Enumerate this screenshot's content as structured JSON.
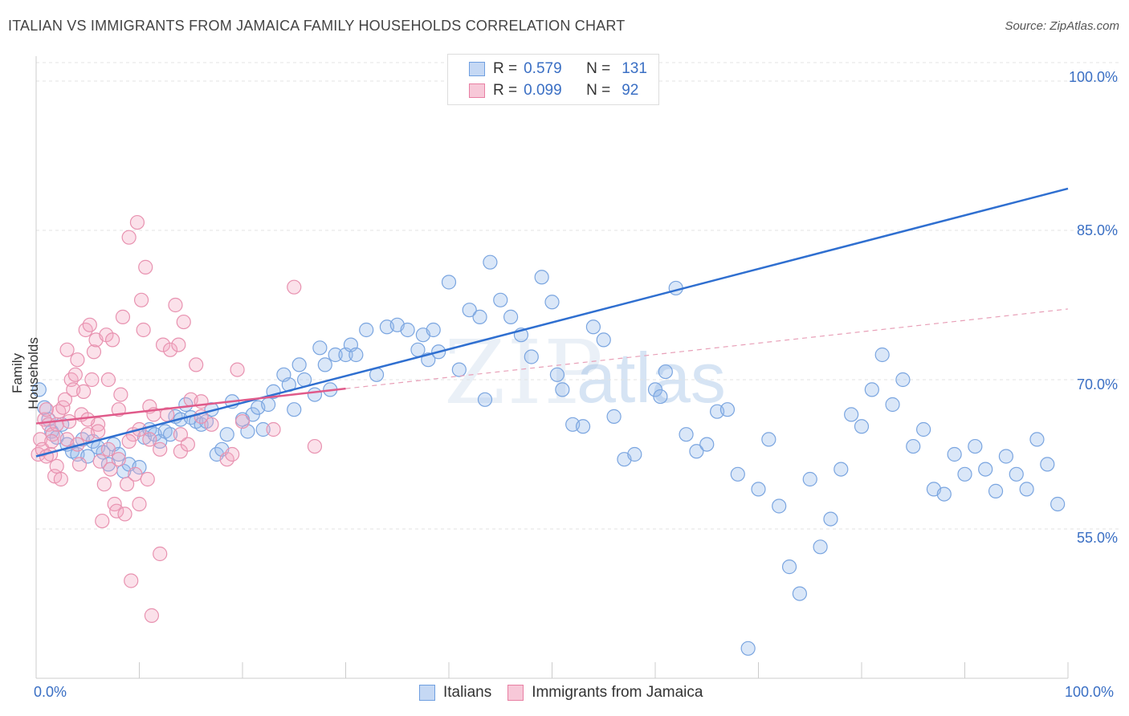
{
  "header": {
    "title": "ITALIAN VS IMMIGRANTS FROM JAMAICA FAMILY HOUSEHOLDS CORRELATION CHART",
    "source": "Source: ZipAtlas.com"
  },
  "watermark": {
    "part1": "ZIP",
    "part2": "atlas"
  },
  "legend_top": {
    "rows": [
      {
        "r_label": "R =",
        "r_value": "0.579",
        "n_label": "N =",
        "n_value": "131"
      },
      {
        "r_label": "R =",
        "r_value": "0.099",
        "n_label": "N =",
        "n_value": "92"
      }
    ]
  },
  "legend_bottom": {
    "items": [
      "Italians",
      "Immigrants from Jamaica"
    ]
  },
  "colors": {
    "blue": "#6f9fe0",
    "blue_fill": "#c5d8f4",
    "pink": "#e87fa3",
    "pink_fill": "#f7c8d8",
    "blue_line": "#2f6fd0",
    "pink_line": "#e05a8a",
    "accent_text": "#3a6fc4"
  },
  "chart_data": {
    "type": "scatter",
    "title": "ITALIAN VS IMMIGRANTS FROM JAMAICA FAMILY HOUSEHOLDS CORRELATION CHART",
    "xlabel": "",
    "ylabel": "Family Households",
    "xlim": [
      0,
      100
    ],
    "ylim": [
      40,
      102.5
    ],
    "x_tick_labels": [
      "0.0%",
      "100.0%"
    ],
    "y_ticks": [
      55,
      70,
      85,
      100
    ],
    "y_tick_labels": [
      "55.0%",
      "70.0%",
      "85.0%",
      "100.0%"
    ],
    "grid": true,
    "legend_position": "top-center",
    "series": [
      {
        "name": "Italians",
        "color": "#6f9fe0",
        "R": 0.579,
        "N": 131,
        "trend": {
          "x": [
            0,
            100
          ],
          "y": [
            62.3,
            89.2
          ]
        },
        "points": [
          [
            0.3,
            69.0
          ],
          [
            0.8,
            67.2
          ],
          [
            1.2,
            66.0
          ],
          [
            1.5,
            64.8
          ],
          [
            2.0,
            64.2
          ],
          [
            2.5,
            65.5
          ],
          [
            3.0,
            63.5
          ],
          [
            3.5,
            62.8
          ],
          [
            4.0,
            62.5
          ],
          [
            4.5,
            64.0
          ],
          [
            5.0,
            62.3
          ],
          [
            5.5,
            63.8
          ],
          [
            6.0,
            63.2
          ],
          [
            6.5,
            62.7
          ],
          [
            7.0,
            61.5
          ],
          [
            7.5,
            63.5
          ],
          [
            8.0,
            62.5
          ],
          [
            8.5,
            60.8
          ],
          [
            9.0,
            61.5
          ],
          [
            10.0,
            61.2
          ],
          [
            10.5,
            64.2
          ],
          [
            11.0,
            65.0
          ],
          [
            11.5,
            64.5
          ],
          [
            12.0,
            63.8
          ],
          [
            12.5,
            64.8
          ],
          [
            13.0,
            64.5
          ],
          [
            13.5,
            66.3
          ],
          [
            14.0,
            66.0
          ],
          [
            14.5,
            67.5
          ],
          [
            15.0,
            66.2
          ],
          [
            15.5,
            65.8
          ],
          [
            16.0,
            65.5
          ],
          [
            16.5,
            65.8
          ],
          [
            17.0,
            67.0
          ],
          [
            17.5,
            62.5
          ],
          [
            18.0,
            63.0
          ],
          [
            18.5,
            64.5
          ],
          [
            19.0,
            67.8
          ],
          [
            20.0,
            66.0
          ],
          [
            20.5,
            64.8
          ],
          [
            21.0,
            66.5
          ],
          [
            21.5,
            67.2
          ],
          [
            22.0,
            65.0
          ],
          [
            22.5,
            67.5
          ],
          [
            23.0,
            68.8
          ],
          [
            24.0,
            70.5
          ],
          [
            24.5,
            69.5
          ],
          [
            25.0,
            67.0
          ],
          [
            25.5,
            71.5
          ],
          [
            26.0,
            70.0
          ],
          [
            27.0,
            68.5
          ],
          [
            27.5,
            73.2
          ],
          [
            28.0,
            71.5
          ],
          [
            28.5,
            69.0
          ],
          [
            29.0,
            72.5
          ],
          [
            30.0,
            72.5
          ],
          [
            30.5,
            73.5
          ],
          [
            31.0,
            72.5
          ],
          [
            32.0,
            75.0
          ],
          [
            33.0,
            70.5
          ],
          [
            34.0,
            75.3
          ],
          [
            35.0,
            75.5
          ],
          [
            36.0,
            75.0
          ],
          [
            37.0,
            73.0
          ],
          [
            37.5,
            74.5
          ],
          [
            38.0,
            72.0
          ],
          [
            38.5,
            75.0
          ],
          [
            39.0,
            72.8
          ],
          [
            40.0,
            79.8
          ],
          [
            41.0,
            71.0
          ],
          [
            42.0,
            77.0
          ],
          [
            43.0,
            76.3
          ],
          [
            43.5,
            68.0
          ],
          [
            44.0,
            81.8
          ],
          [
            45.0,
            78.0
          ],
          [
            46.0,
            76.3
          ],
          [
            47.0,
            74.5
          ],
          [
            48.0,
            72.3
          ],
          [
            49.0,
            80.3
          ],
          [
            50.0,
            77.8
          ],
          [
            50.5,
            70.5
          ],
          [
            51.0,
            69.0
          ],
          [
            52.0,
            65.5
          ],
          [
            53.0,
            65.3
          ],
          [
            54.0,
            75.3
          ],
          [
            55.0,
            74.0
          ],
          [
            56.0,
            66.3
          ],
          [
            57.0,
            62.0
          ],
          [
            58.0,
            62.5
          ],
          [
            60.0,
            69.0
          ],
          [
            60.5,
            68.3
          ],
          [
            61.0,
            70.8
          ],
          [
            62.0,
            79.2
          ],
          [
            63.0,
            64.5
          ],
          [
            64.0,
            62.8
          ],
          [
            65.0,
            63.5
          ],
          [
            66.0,
            66.8
          ],
          [
            67.0,
            67.0
          ],
          [
            68.0,
            60.5
          ],
          [
            69.0,
            43.0
          ],
          [
            70.0,
            59.0
          ],
          [
            71.0,
            64.0
          ],
          [
            72.0,
            57.3
          ],
          [
            73.0,
            51.2
          ],
          [
            74.0,
            48.5
          ],
          [
            75.0,
            60.0
          ],
          [
            76.0,
            53.2
          ],
          [
            77.0,
            56.0
          ],
          [
            78.0,
            61.0
          ],
          [
            79.0,
            66.5
          ],
          [
            80.0,
            65.3
          ],
          [
            81.0,
            69.0
          ],
          [
            82.0,
            72.5
          ],
          [
            83.0,
            67.5
          ],
          [
            84.0,
            70.0
          ],
          [
            85.0,
            63.3
          ],
          [
            86.0,
            65.0
          ],
          [
            87.0,
            59.0
          ],
          [
            88.0,
            58.5
          ],
          [
            89.0,
            62.5
          ],
          [
            90.0,
            60.5
          ],
          [
            91.0,
            63.3
          ],
          [
            92.0,
            61.0
          ],
          [
            93.0,
            58.8
          ],
          [
            94.0,
            62.3
          ],
          [
            95.0,
            60.5
          ],
          [
            96.0,
            59.0
          ],
          [
            97.0,
            64.0
          ],
          [
            98.0,
            61.5
          ],
          [
            99.0,
            57.5
          ]
        ]
      },
      {
        "name": "Immigrants from Jamaica",
        "color": "#e87fa3",
        "R": 0.099,
        "N": 92,
        "trend": {
          "x": [
            0,
            30
          ],
          "y": [
            65.6,
            69.1
          ]
        },
        "trend_extension": {
          "x": [
            30,
            100
          ],
          "y": [
            69.1,
            77.1
          ]
        },
        "points": [
          [
            0.2,
            62.5
          ],
          [
            0.4,
            64.0
          ],
          [
            0.6,
            63.0
          ],
          [
            0.8,
            66.0
          ],
          [
            1.0,
            67.0
          ],
          [
            1.2,
            65.5
          ],
          [
            1.4,
            62.5
          ],
          [
            1.6,
            64.5
          ],
          [
            1.8,
            60.3
          ],
          [
            2.0,
            65.5
          ],
          [
            2.2,
            66.8
          ],
          [
            2.4,
            60.0
          ],
          [
            2.6,
            67.2
          ],
          [
            2.8,
            68.0
          ],
          [
            3.0,
            73.0
          ],
          [
            3.2,
            65.8
          ],
          [
            3.4,
            70.0
          ],
          [
            3.6,
            69.0
          ],
          [
            3.8,
            70.5
          ],
          [
            4.0,
            72.0
          ],
          [
            4.2,
            61.5
          ],
          [
            4.4,
            66.5
          ],
          [
            4.6,
            68.8
          ],
          [
            4.8,
            75.0
          ],
          [
            5.0,
            64.5
          ],
          [
            5.2,
            75.5
          ],
          [
            5.4,
            70.0
          ],
          [
            5.6,
            72.8
          ],
          [
            5.8,
            74.0
          ],
          [
            6.0,
            65.5
          ],
          [
            6.2,
            61.8
          ],
          [
            6.4,
            55.8
          ],
          [
            6.6,
            59.5
          ],
          [
            6.8,
            74.5
          ],
          [
            7.0,
            70.0
          ],
          [
            7.2,
            61.0
          ],
          [
            7.4,
            74.0
          ],
          [
            7.6,
            57.5
          ],
          [
            7.8,
            56.8
          ],
          [
            8.0,
            67.0
          ],
          [
            8.2,
            68.5
          ],
          [
            8.4,
            76.3
          ],
          [
            8.6,
            56.5
          ],
          [
            8.8,
            59.5
          ],
          [
            9.0,
            84.3
          ],
          [
            9.2,
            49.8
          ],
          [
            9.4,
            64.5
          ],
          [
            9.6,
            60.5
          ],
          [
            9.8,
            85.8
          ],
          [
            10.0,
            57.5
          ],
          [
            10.2,
            78.0
          ],
          [
            10.4,
            75.0
          ],
          [
            10.6,
            81.3
          ],
          [
            10.8,
            60.0
          ],
          [
            11.0,
            67.3
          ],
          [
            11.2,
            46.3
          ],
          [
            11.4,
            66.5
          ],
          [
            12.0,
            52.5
          ],
          [
            12.3,
            73.5
          ],
          [
            12.7,
            66.5
          ],
          [
            13.0,
            73.0
          ],
          [
            13.5,
            77.5
          ],
          [
            13.8,
            73.5
          ],
          [
            14.0,
            62.8
          ],
          [
            14.3,
            75.8
          ],
          [
            14.7,
            63.5
          ],
          [
            15.0,
            68.0
          ],
          [
            15.5,
            71.5
          ],
          [
            16.0,
            67.8
          ],
          [
            17.0,
            65.5
          ],
          [
            18.5,
            62.0
          ],
          [
            19.0,
            62.5
          ],
          [
            19.5,
            71.0
          ],
          [
            20.0,
            65.8
          ],
          [
            23.0,
            65.0
          ],
          [
            25.0,
            79.3
          ],
          [
            27.0,
            63.3
          ],
          [
            1.0,
            62.3
          ],
          [
            1.5,
            63.8
          ],
          [
            2.0,
            61.3
          ],
          [
            3.0,
            64.0
          ],
          [
            4.0,
            63.5
          ],
          [
            5.0,
            66.0
          ],
          [
            6.0,
            64.8
          ],
          [
            7.0,
            63.0
          ],
          [
            8.0,
            62.0
          ],
          [
            9.0,
            63.8
          ],
          [
            10.0,
            65.0
          ],
          [
            11.0,
            64.0
          ],
          [
            12.0,
            63.0
          ],
          [
            14.0,
            64.5
          ],
          [
            16.0,
            66.3
          ]
        ]
      }
    ]
  }
}
